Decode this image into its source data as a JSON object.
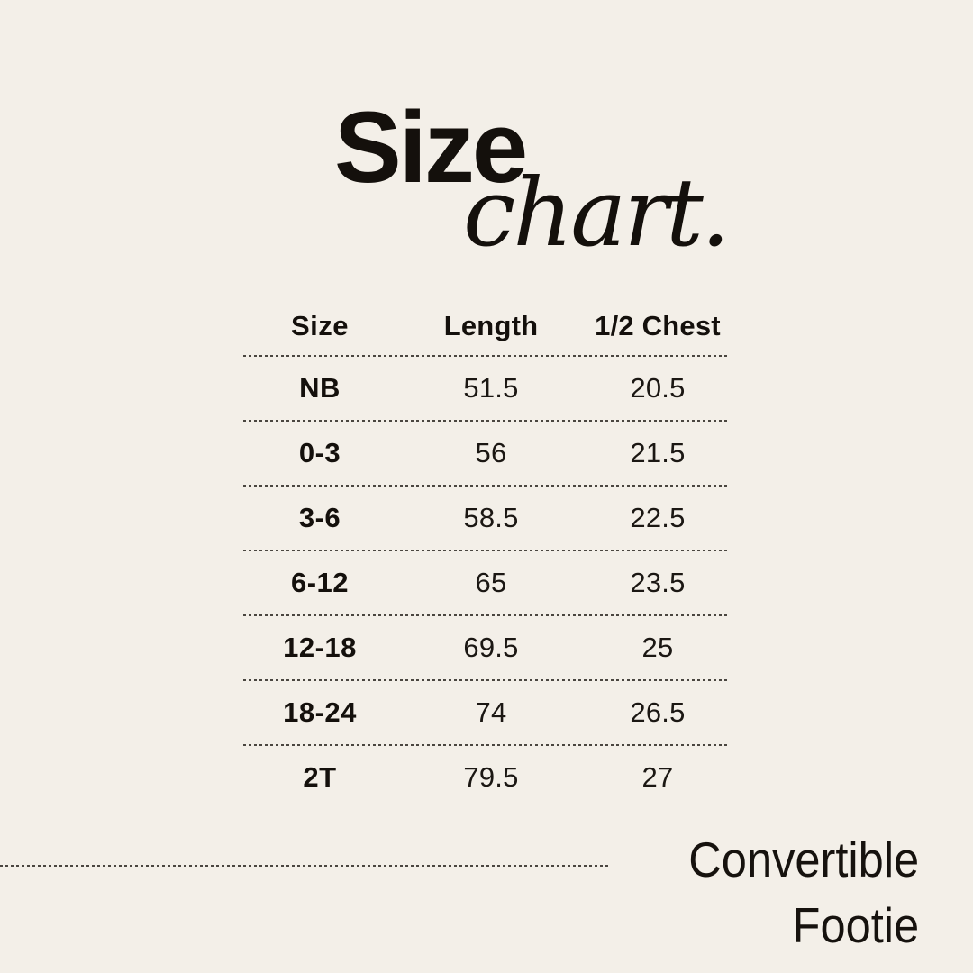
{
  "page": {
    "background_color": "#F3EFE8",
    "text_color": "#17130F"
  },
  "title": {
    "word_main": "Size",
    "word_script": "chart."
  },
  "table": {
    "headers": [
      "Size",
      "Length",
      "1/2 Chest"
    ],
    "rows": [
      [
        "NB",
        "51.5",
        "20.5"
      ],
      [
        "0-3",
        "56",
        "21.5"
      ],
      [
        "3-6",
        "58.5",
        "22.5"
      ],
      [
        "6-12",
        "65",
        "23.5"
      ],
      [
        "12-18",
        "69.5",
        "25"
      ],
      [
        "18-24",
        "74",
        "26.5"
      ],
      [
        "2T",
        "79.5",
        "27"
      ]
    ]
  },
  "footer": {
    "product_name_line1": "Convertible",
    "product_name_line2": "Footie"
  },
  "chart_data": {
    "type": "table",
    "title": "Size chart.",
    "columns": [
      "Size",
      "Length",
      "1/2 Chest"
    ],
    "rows": [
      [
        "NB",
        51.5,
        20.5
      ],
      [
        "0-3",
        56,
        21.5
      ],
      [
        "3-6",
        58.5,
        22.5
      ],
      [
        "6-12",
        65,
        23.5
      ],
      [
        "12-18",
        69.5,
        25
      ],
      [
        "18-24",
        74,
        26.5
      ],
      [
        "2T",
        79.5,
        27
      ]
    ],
    "caption": "Convertible Footie"
  }
}
